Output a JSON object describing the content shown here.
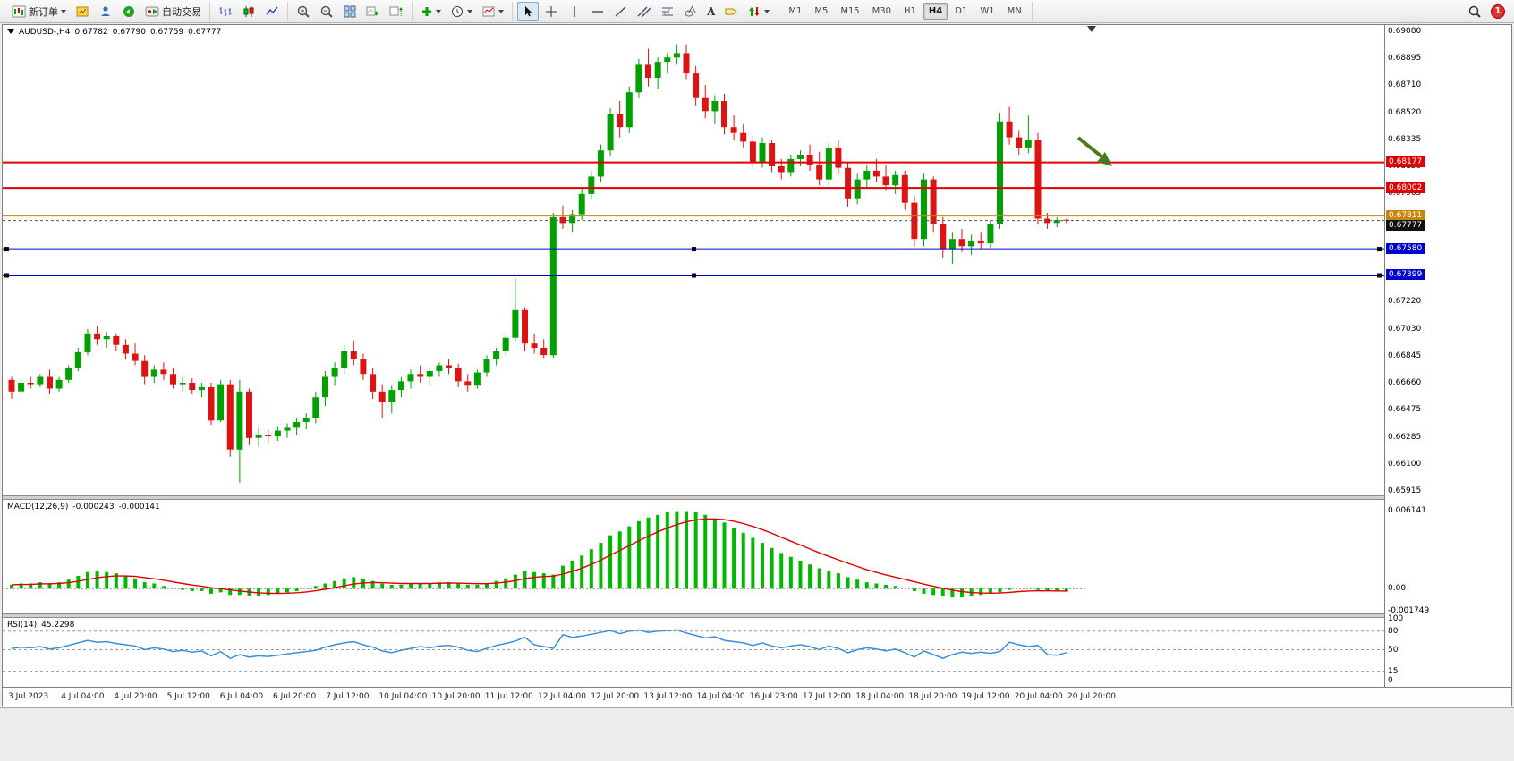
{
  "toolbar": {
    "new_order_label": "新订单",
    "autotrading_label": "自动交易",
    "text_tool_label": "A",
    "timeframes": [
      "M1",
      "M5",
      "M15",
      "M30",
      "H1",
      "H4",
      "D1",
      "W1",
      "MN"
    ],
    "active_timeframe": "H4",
    "notification_count": "1"
  },
  "chart_header": {
    "symbol": "AUDUSD-,H4",
    "open": "0.67782",
    "high": "0.67790",
    "low": "0.67759",
    "close": "0.67777"
  },
  "chart_data": {
    "type": "candlestick",
    "symbol": "AUDUSD",
    "timeframe": "H4",
    "y_max": 0.6908,
    "y_min": 0.65915,
    "colors": {
      "up": "#00a000",
      "down": "#dc1414"
    },
    "arrow_color": "#4a7a1e",
    "price_axis": [
      "0.69080",
      "0.68895",
      "0.68710",
      "0.68520",
      "0.68335",
      "0.68150",
      "0.67965",
      "0.67780",
      "0.67590",
      "0.67405",
      "0.67220",
      "0.67030",
      "0.66845",
      "0.66660",
      "0.66475",
      "0.66285",
      "0.66100",
      "0.65915"
    ],
    "levels": [
      {
        "label": "0.68177",
        "value": 0.68177,
        "color": "#e00000",
        "kind": "resistance-line"
      },
      {
        "label": "0.68002",
        "value": 0.68002,
        "color": "#e00000",
        "kind": "resistance-line"
      },
      {
        "label": "0.67811",
        "value": 0.67811,
        "color": "#c8860b",
        "kind": "pivot-line"
      },
      {
        "label": "0.67777",
        "value": 0.67777,
        "color": "#111111",
        "kind": "current-price",
        "current": true
      },
      {
        "label": "0.67580",
        "value": 0.6758,
        "color": "#0000cc",
        "kind": "support-line",
        "handles": true
      },
      {
        "label": "0.67399",
        "value": 0.67399,
        "color": "#0000cc",
        "kind": "support-line",
        "handles": true
      }
    ],
    "candles": [
      [
        0.6668,
        0.667,
        0.6655,
        0.666
      ],
      [
        0.666,
        0.6668,
        0.6658,
        0.6666
      ],
      [
        0.6666,
        0.667,
        0.6662,
        0.6665
      ],
      [
        0.6665,
        0.6672,
        0.6663,
        0.667
      ],
      [
        0.667,
        0.6675,
        0.6658,
        0.6662
      ],
      [
        0.6662,
        0.667,
        0.666,
        0.6668
      ],
      [
        0.6668,
        0.6678,
        0.6666,
        0.6676
      ],
      [
        0.6676,
        0.669,
        0.6674,
        0.6687
      ],
      [
        0.6687,
        0.6703,
        0.6685,
        0.67
      ],
      [
        0.67,
        0.6705,
        0.6692,
        0.6696
      ],
      [
        0.6696,
        0.6701,
        0.669,
        0.6698
      ],
      [
        0.6698,
        0.67,
        0.6688,
        0.6692
      ],
      [
        0.6692,
        0.6696,
        0.6682,
        0.6686
      ],
      [
        0.6686,
        0.6693,
        0.6678,
        0.6681
      ],
      [
        0.6681,
        0.6685,
        0.6665,
        0.667
      ],
      [
        0.667,
        0.6678,
        0.6666,
        0.6675
      ],
      [
        0.6675,
        0.668,
        0.6668,
        0.6672
      ],
      [
        0.6672,
        0.6676,
        0.6662,
        0.6665
      ],
      [
        0.6665,
        0.667,
        0.666,
        0.6666
      ],
      [
        0.6666,
        0.6669,
        0.6658,
        0.6661
      ],
      [
        0.6661,
        0.6666,
        0.6656,
        0.6663
      ],
      [
        0.6663,
        0.6666,
        0.6637,
        0.664
      ],
      [
        0.664,
        0.6668,
        0.6639,
        0.6665
      ],
      [
        0.6665,
        0.6668,
        0.6615,
        0.662
      ],
      [
        0.662,
        0.6668,
        0.6597,
        0.666
      ],
      [
        0.666,
        0.6662,
        0.6623,
        0.6628
      ],
      [
        0.6628,
        0.6635,
        0.6622,
        0.663
      ],
      [
        0.663,
        0.6634,
        0.6624,
        0.6629
      ],
      [
        0.6629,
        0.6636,
        0.6626,
        0.6633
      ],
      [
        0.6633,
        0.6638,
        0.6628,
        0.6635
      ],
      [
        0.6635,
        0.6642,
        0.663,
        0.6639
      ],
      [
        0.6639,
        0.6645,
        0.6634,
        0.6642
      ],
      [
        0.6642,
        0.666,
        0.6638,
        0.6656
      ],
      [
        0.6656,
        0.6674,
        0.665,
        0.667
      ],
      [
        0.667,
        0.668,
        0.6664,
        0.6676
      ],
      [
        0.6676,
        0.6692,
        0.6672,
        0.6688
      ],
      [
        0.6688,
        0.6695,
        0.6678,
        0.6682
      ],
      [
        0.6682,
        0.6686,
        0.6668,
        0.6672
      ],
      [
        0.6672,
        0.6676,
        0.6655,
        0.666
      ],
      [
        0.666,
        0.6665,
        0.6642,
        0.6653
      ],
      [
        0.6653,
        0.6664,
        0.6645,
        0.6661
      ],
      [
        0.6661,
        0.667,
        0.6656,
        0.6667
      ],
      [
        0.6667,
        0.6675,
        0.6662,
        0.6672
      ],
      [
        0.6672,
        0.6678,
        0.6666,
        0.667
      ],
      [
        0.667,
        0.6676,
        0.6664,
        0.6674
      ],
      [
        0.6674,
        0.668,
        0.667,
        0.6678
      ],
      [
        0.6678,
        0.6682,
        0.6672,
        0.6676
      ],
      [
        0.6676,
        0.6679,
        0.6663,
        0.6667
      ],
      [
        0.6667,
        0.6672,
        0.666,
        0.6664
      ],
      [
        0.6664,
        0.6675,
        0.6662,
        0.6673
      ],
      [
        0.6673,
        0.6685,
        0.667,
        0.6682
      ],
      [
        0.6682,
        0.669,
        0.6678,
        0.6688
      ],
      [
        0.6688,
        0.67,
        0.6685,
        0.6697
      ],
      [
        0.6697,
        0.6738,
        0.6695,
        0.6716
      ],
      [
        0.6716,
        0.6718,
        0.6688,
        0.6693
      ],
      [
        0.6693,
        0.67,
        0.6686,
        0.669
      ],
      [
        0.669,
        0.6696,
        0.6683,
        0.6685
      ],
      [
        0.6685,
        0.6783,
        0.6683,
        0.678
      ],
      [
        0.678,
        0.6788,
        0.6772,
        0.6776
      ],
      [
        0.6776,
        0.6785,
        0.677,
        0.6782
      ],
      [
        0.6782,
        0.68,
        0.6778,
        0.6796
      ],
      [
        0.6796,
        0.6812,
        0.6792,
        0.6808
      ],
      [
        0.6808,
        0.683,
        0.6804,
        0.6826
      ],
      [
        0.6826,
        0.6855,
        0.6822,
        0.6851
      ],
      [
        0.6851,
        0.686,
        0.6835,
        0.6842
      ],
      [
        0.6842,
        0.687,
        0.6838,
        0.6866
      ],
      [
        0.6866,
        0.6889,
        0.6862,
        0.6885
      ],
      [
        0.6885,
        0.6896,
        0.687,
        0.6876
      ],
      [
        0.6876,
        0.689,
        0.6868,
        0.6887
      ],
      [
        0.6887,
        0.6893,
        0.6879,
        0.689
      ],
      [
        0.689,
        0.6899,
        0.6885,
        0.6893
      ],
      [
        0.6893,
        0.6899,
        0.6875,
        0.6879
      ],
      [
        0.6879,
        0.6884,
        0.6857,
        0.6862
      ],
      [
        0.6862,
        0.6871,
        0.6848,
        0.6853
      ],
      [
        0.6853,
        0.6864,
        0.6844,
        0.686
      ],
      [
        0.686,
        0.6865,
        0.6837,
        0.6842
      ],
      [
        0.6842,
        0.685,
        0.6833,
        0.6838
      ],
      [
        0.6838,
        0.6844,
        0.6828,
        0.6832
      ],
      [
        0.6832,
        0.6836,
        0.6814,
        0.6818
      ],
      [
        0.6818,
        0.6835,
        0.6814,
        0.6831
      ],
      [
        0.6831,
        0.6833,
        0.6811,
        0.6815
      ],
      [
        0.6815,
        0.682,
        0.6806,
        0.6811
      ],
      [
        0.6811,
        0.6823,
        0.6808,
        0.682
      ],
      [
        0.682,
        0.6826,
        0.6815,
        0.6823
      ],
      [
        0.6823,
        0.683,
        0.6812,
        0.6816
      ],
      [
        0.6816,
        0.6825,
        0.6802,
        0.6806
      ],
      [
        0.6806,
        0.6832,
        0.6802,
        0.6828
      ],
      [
        0.6828,
        0.6833,
        0.681,
        0.6814
      ],
      [
        0.6814,
        0.6818,
        0.6787,
        0.6793
      ],
      [
        0.6793,
        0.681,
        0.6789,
        0.6806
      ],
      [
        0.6806,
        0.6816,
        0.68,
        0.6812
      ],
      [
        0.6812,
        0.682,
        0.6804,
        0.6808
      ],
      [
        0.6808,
        0.6816,
        0.6798,
        0.6802
      ],
      [
        0.6802,
        0.6812,
        0.6796,
        0.6809
      ],
      [
        0.6809,
        0.6812,
        0.6785,
        0.679
      ],
      [
        0.679,
        0.6795,
        0.676,
        0.6765
      ],
      [
        0.6765,
        0.681,
        0.676,
        0.6806
      ],
      [
        0.6806,
        0.6808,
        0.677,
        0.6775
      ],
      [
        0.6775,
        0.678,
        0.6752,
        0.6758
      ],
      [
        0.6758,
        0.677,
        0.6748,
        0.6765
      ],
      [
        0.6765,
        0.6772,
        0.6756,
        0.676
      ],
      [
        0.676,
        0.6768,
        0.6754,
        0.6764
      ],
      [
        0.6764,
        0.677,
        0.6758,
        0.6762
      ],
      [
        0.6762,
        0.6778,
        0.6759,
        0.6775
      ],
      [
        0.6775,
        0.6852,
        0.6772,
        0.6846
      ],
      [
        0.6846,
        0.6856,
        0.683,
        0.6835
      ],
      [
        0.6835,
        0.684,
        0.6823,
        0.6828
      ],
      [
        0.6828,
        0.685,
        0.6824,
        0.6833
      ],
      [
        0.6833,
        0.6838,
        0.6775,
        0.6779
      ],
      [
        0.6779,
        0.6783,
        0.6772,
        0.6776
      ],
      [
        0.6776,
        0.678,
        0.6773,
        0.6778
      ],
      [
        0.67782,
        0.6779,
        0.67759,
        0.67777
      ]
    ],
    "macd": {
      "label": "MACD(12,26,9)",
      "value_main": "-0.000243",
      "value_signal": "-0.000141",
      "axis": [
        "0.006141",
        "0.00",
        "-0.001749"
      ],
      "max": 0.006141,
      "min": -0.001749,
      "color": "#00b800",
      "signal_color": "#e00000",
      "histogram": [
        0.0003,
        0.0004,
        0.0004,
        0.0005,
        0.0004,
        0.0005,
        0.0007,
        0.001,
        0.0013,
        0.0014,
        0.0013,
        0.0012,
        0.001,
        0.0008,
        0.0005,
        0.0004,
        0.0002,
        0,
        -0.0001,
        -0.0002,
        -0.0002,
        -0.0004,
        -0.0003,
        -0.0005,
        -0.0005,
        -0.0006,
        -0.0006,
        -0.0005,
        -0.0004,
        -0.0003,
        -0.0002,
        0,
        0.0002,
        0.0004,
        0.0006,
        0.0008,
        0.0009,
        0.0008,
        0.0006,
        0.0004,
        0.0003,
        0.0003,
        0.0004,
        0.0004,
        0.0004,
        0.0005,
        0.0005,
        0.0004,
        0.0003,
        0.0003,
        0.0004,
        0.0006,
        0.0008,
        0.0011,
        0.0014,
        0.0013,
        0.0012,
        0.0011,
        0.0018,
        0.0022,
        0.0026,
        0.0031,
        0.0036,
        0.0042,
        0.0045,
        0.0049,
        0.0053,
        0.0056,
        0.0058,
        0.006,
        0.0061,
        0.0061,
        0.006,
        0.0058,
        0.0055,
        0.0052,
        0.0048,
        0.0044,
        0.004,
        0.0036,
        0.0032,
        0.0028,
        0.0025,
        0.0022,
        0.0019,
        0.0016,
        0.0014,
        0.0012,
        0.0009,
        0.0007,
        0.0005,
        0.0004,
        0.0003,
        0.0002,
        0,
        -0.0002,
        -0.0004,
        -0.0005,
        -0.0006,
        -0.0007,
        -0.0007,
        -0.0006,
        -0.0005,
        -0.0004,
        -0.0003,
        -0.0001,
        0,
        0,
        -0.0001,
        -0.0002,
        -0.0002,
        -0.000243
      ]
    },
    "rsi": {
      "label": "RSI(14)",
      "value": "45.2298",
      "axis": [
        "100",
        "80",
        "50",
        "15",
        "0"
      ],
      "levels": [
        80,
        50,
        15
      ],
      "color": "#3c8fd6",
      "values": [
        52,
        54,
        53,
        55,
        51,
        53,
        57,
        61,
        65,
        62,
        63,
        60,
        58,
        56,
        50,
        53,
        51,
        47,
        49,
        46,
        48,
        40,
        47,
        36,
        42,
        38,
        40,
        39,
        41,
        43,
        45,
        47,
        49,
        54,
        58,
        61,
        63,
        58,
        54,
        48,
        45,
        49,
        52,
        55,
        53,
        56,
        57,
        54,
        49,
        47,
        52,
        57,
        60,
        64,
        70,
        58,
        55,
        52,
        74,
        70,
        72,
        75,
        78,
        81,
        76,
        80,
        82,
        78,
        80,
        81,
        82,
        77,
        73,
        69,
        71,
        65,
        63,
        61,
        57,
        61,
        56,
        53,
        56,
        58,
        55,
        50,
        56,
        52,
        45,
        50,
        53,
        51,
        48,
        51,
        45,
        38,
        48,
        42,
        36,
        42,
        46,
        44,
        46,
        44,
        47,
        62,
        58,
        55,
        57,
        42,
        41,
        45.23
      ]
    },
    "time_axis": [
      "3 Jul 2023",
      "4 Jul 04:00",
      "4 Jul 20:00",
      "5 Jul 12:00",
      "6 Jul 04:00",
      "6 Jul 20:00",
      "7 Jul 12:00",
      "10 Jul 04:00",
      "10 Jul 20:00",
      "11 Jul 12:00",
      "12 Jul 04:00",
      "12 Jul 20:00",
      "13 Jul 12:00",
      "14 Jul 04:00",
      "16 Jul 23:00",
      "17 Jul 12:00",
      "18 Jul 04:00",
      "18 Jul 20:00",
      "19 Jul 12:00",
      "20 Jul 04:00",
      "20 Jul 20:00"
    ]
  }
}
